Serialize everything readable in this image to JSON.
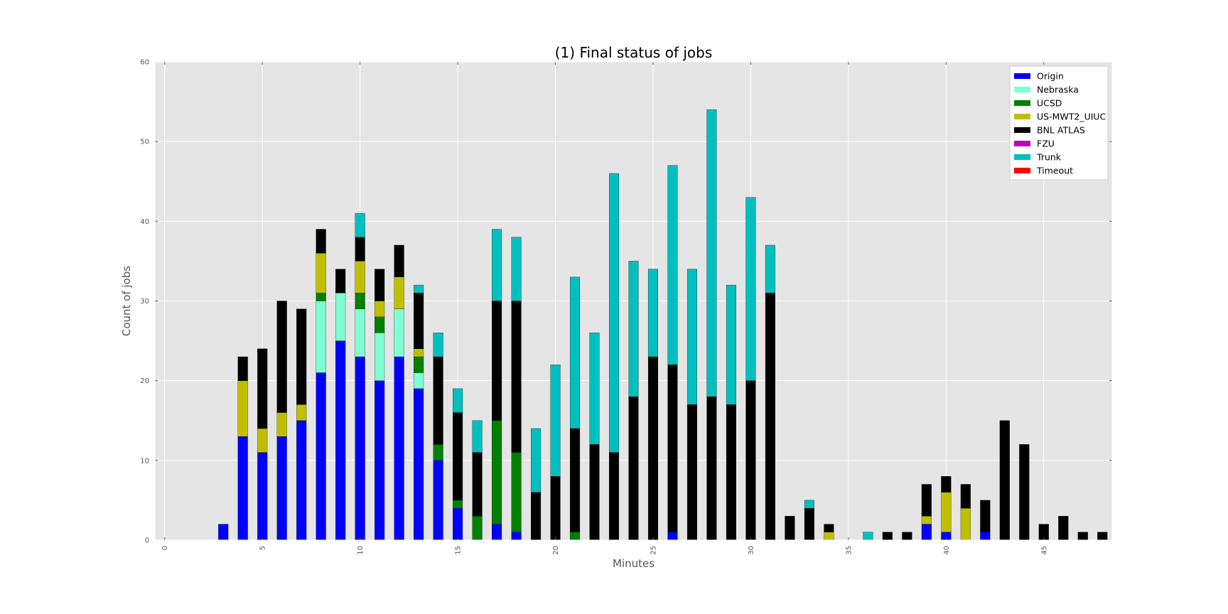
{
  "chart_data": {
    "type": "bar",
    "stacked": true,
    "title": "(1) Final status of jobs",
    "xlabel": "Minutes",
    "ylabel": "Count of jobs",
    "xlim": [
      -0.5,
      48.5
    ],
    "ylim": [
      0,
      60
    ],
    "xticks": [
      0,
      5,
      10,
      15,
      20,
      25,
      30,
      35,
      40,
      45
    ],
    "yticks": [
      0,
      10,
      20,
      30,
      40,
      50,
      60
    ],
    "grid": true,
    "legend_position": "top-right",
    "x": [
      0,
      1,
      2,
      3,
      4,
      5,
      6,
      7,
      8,
      9,
      10,
      11,
      12,
      13,
      14,
      15,
      16,
      17,
      18,
      19,
      20,
      21,
      22,
      23,
      24,
      25,
      26,
      27,
      28,
      29,
      30,
      31,
      32,
      33,
      34,
      35,
      36,
      37,
      38,
      39,
      40,
      41,
      42,
      43,
      44,
      45,
      46,
      47,
      48
    ],
    "series": [
      {
        "name": "Origin",
        "color": "#0000ff",
        "values": [
          0,
          0,
          0,
          2,
          13,
          11,
          13,
          15,
          21,
          25,
          23,
          20,
          23,
          19,
          10,
          4,
          0,
          2,
          1,
          0,
          0,
          0,
          0,
          0,
          0,
          0,
          1,
          0,
          0,
          0,
          0,
          0,
          0,
          0,
          0,
          0,
          0,
          0,
          0,
          2,
          1,
          0,
          1,
          0,
          0,
          0,
          0,
          0,
          0
        ]
      },
      {
        "name": "Nebraska",
        "color": "#7fffd4",
        "values": [
          0,
          0,
          0,
          0,
          0,
          0,
          0,
          0,
          9,
          6,
          6,
          6,
          6,
          2,
          0,
          0,
          0,
          0,
          0,
          0,
          0,
          0,
          0,
          0,
          0,
          0,
          0,
          0,
          0,
          0,
          0,
          0,
          0,
          0,
          0,
          0,
          0,
          0,
          0,
          0,
          0,
          0,
          0,
          0,
          0,
          0,
          0,
          0,
          0
        ]
      },
      {
        "name": "UCSD",
        "color": "#008000",
        "values": [
          0,
          0,
          0,
          0,
          0,
          0,
          0,
          0,
          1,
          0,
          2,
          2,
          0,
          2,
          2,
          1,
          3,
          13,
          10,
          0,
          0,
          1,
          0,
          0,
          0,
          0,
          0,
          0,
          0,
          0,
          0,
          0,
          0,
          0,
          0,
          0,
          0,
          0,
          0,
          0,
          0,
          0,
          0,
          0,
          0,
          0,
          0,
          0,
          0
        ]
      },
      {
        "name": "US-MWT2_UIUC",
        "color": "#bfbf00",
        "values": [
          0,
          0,
          0,
          0,
          7,
          3,
          3,
          2,
          5,
          0,
          4,
          2,
          4,
          1,
          0,
          0,
          0,
          0,
          0,
          0,
          0,
          0,
          0,
          0,
          0,
          0,
          0,
          0,
          0,
          0,
          0,
          0,
          0,
          0,
          1,
          0,
          0,
          0,
          0,
          1,
          5,
          4,
          0,
          0,
          0,
          0,
          0,
          0,
          0
        ]
      },
      {
        "name": "BNL ATLAS",
        "color": "#000000",
        "values": [
          0,
          0,
          0,
          0,
          3,
          10,
          14,
          12,
          3,
          3,
          3,
          4,
          4,
          7,
          11,
          11,
          8,
          15,
          19,
          6,
          8,
          13,
          12,
          11,
          18,
          23,
          21,
          17,
          18,
          17,
          20,
          31,
          3,
          4,
          1,
          0,
          0,
          1,
          1,
          4,
          2,
          3,
          4,
          15,
          12,
          2,
          3,
          1,
          1
        ]
      },
      {
        "name": "FZU",
        "color": "#bf00bf",
        "values": [
          0,
          0,
          0,
          0,
          0,
          0,
          0,
          0,
          0,
          0,
          0,
          0,
          0,
          0,
          0,
          0,
          0,
          0,
          0,
          0,
          0,
          0,
          0,
          0,
          0,
          0,
          0,
          0,
          0,
          0,
          0,
          0,
          0,
          0,
          0,
          0,
          0,
          0,
          0,
          0,
          0,
          0,
          0,
          0,
          0,
          0,
          0,
          0,
          0
        ]
      },
      {
        "name": "Trunk",
        "color": "#00bfbf",
        "values": [
          0,
          0,
          0,
          0,
          0,
          0,
          0,
          0,
          0,
          0,
          3,
          0,
          0,
          1,
          3,
          3,
          4,
          9,
          8,
          8,
          14,
          19,
          14,
          35,
          17,
          11,
          25,
          17,
          36,
          15,
          23,
          6,
          0,
          1,
          0,
          0,
          1,
          0,
          0,
          0,
          0,
          0,
          0,
          0,
          0,
          0,
          0,
          0,
          0
        ]
      },
      {
        "name": "Timeout",
        "color": "#ff0000",
        "values": [
          0,
          0,
          0,
          0,
          0,
          0,
          0,
          0,
          0,
          0,
          0,
          0,
          0,
          0,
          0,
          0,
          0,
          0,
          0,
          0,
          0,
          0,
          0,
          0,
          0,
          0,
          0,
          0,
          0,
          0,
          0,
          0,
          0,
          0,
          0,
          0,
          0,
          0,
          0,
          0,
          0,
          0,
          0,
          0,
          0,
          0,
          0,
          0,
          0
        ]
      }
    ]
  }
}
